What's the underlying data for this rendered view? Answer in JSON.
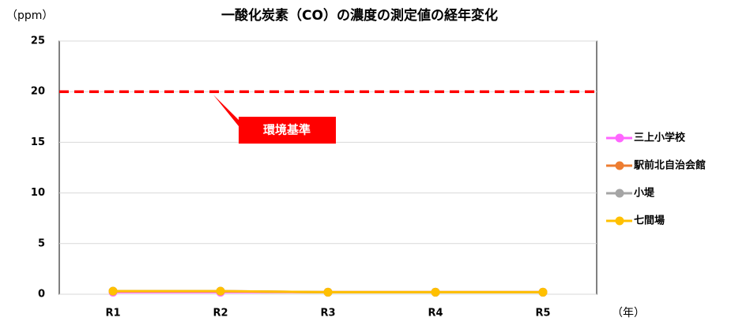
{
  "chart_data": {
    "type": "line",
    "title": "一酸化炭素（CO）の濃度の測定値の経年変化",
    "y_unit": "（ppm）",
    "x_unit": "（年）",
    "categories": [
      "R1",
      "R2",
      "R3",
      "R4",
      "R5"
    ],
    "series": [
      {
        "name": "三上小学校",
        "color": "#ff66ff",
        "values": [
          0.2,
          0.2,
          0.2,
          0.2,
          0.2
        ]
      },
      {
        "name": "駅前北自治会館",
        "color": "#ed7d31",
        "values": [
          0.3,
          0.3,
          0.2,
          0.2,
          0.2
        ]
      },
      {
        "name": "小堤",
        "color": "#a5a5a5",
        "values": [
          0.3,
          0.3,
          0.2,
          0.2,
          0.2
        ]
      },
      {
        "name": "七間場",
        "color": "#ffc000",
        "values": [
          0.3,
          0.3,
          0.2,
          0.2,
          0.2
        ]
      }
    ],
    "reference": {
      "value": 20,
      "label": "環境基準",
      "color": "#ff0000"
    },
    "ylim": [
      0,
      25
    ],
    "yticks": [
      0,
      5,
      10,
      15,
      20,
      25
    ],
    "grid": true,
    "legend": "right"
  }
}
